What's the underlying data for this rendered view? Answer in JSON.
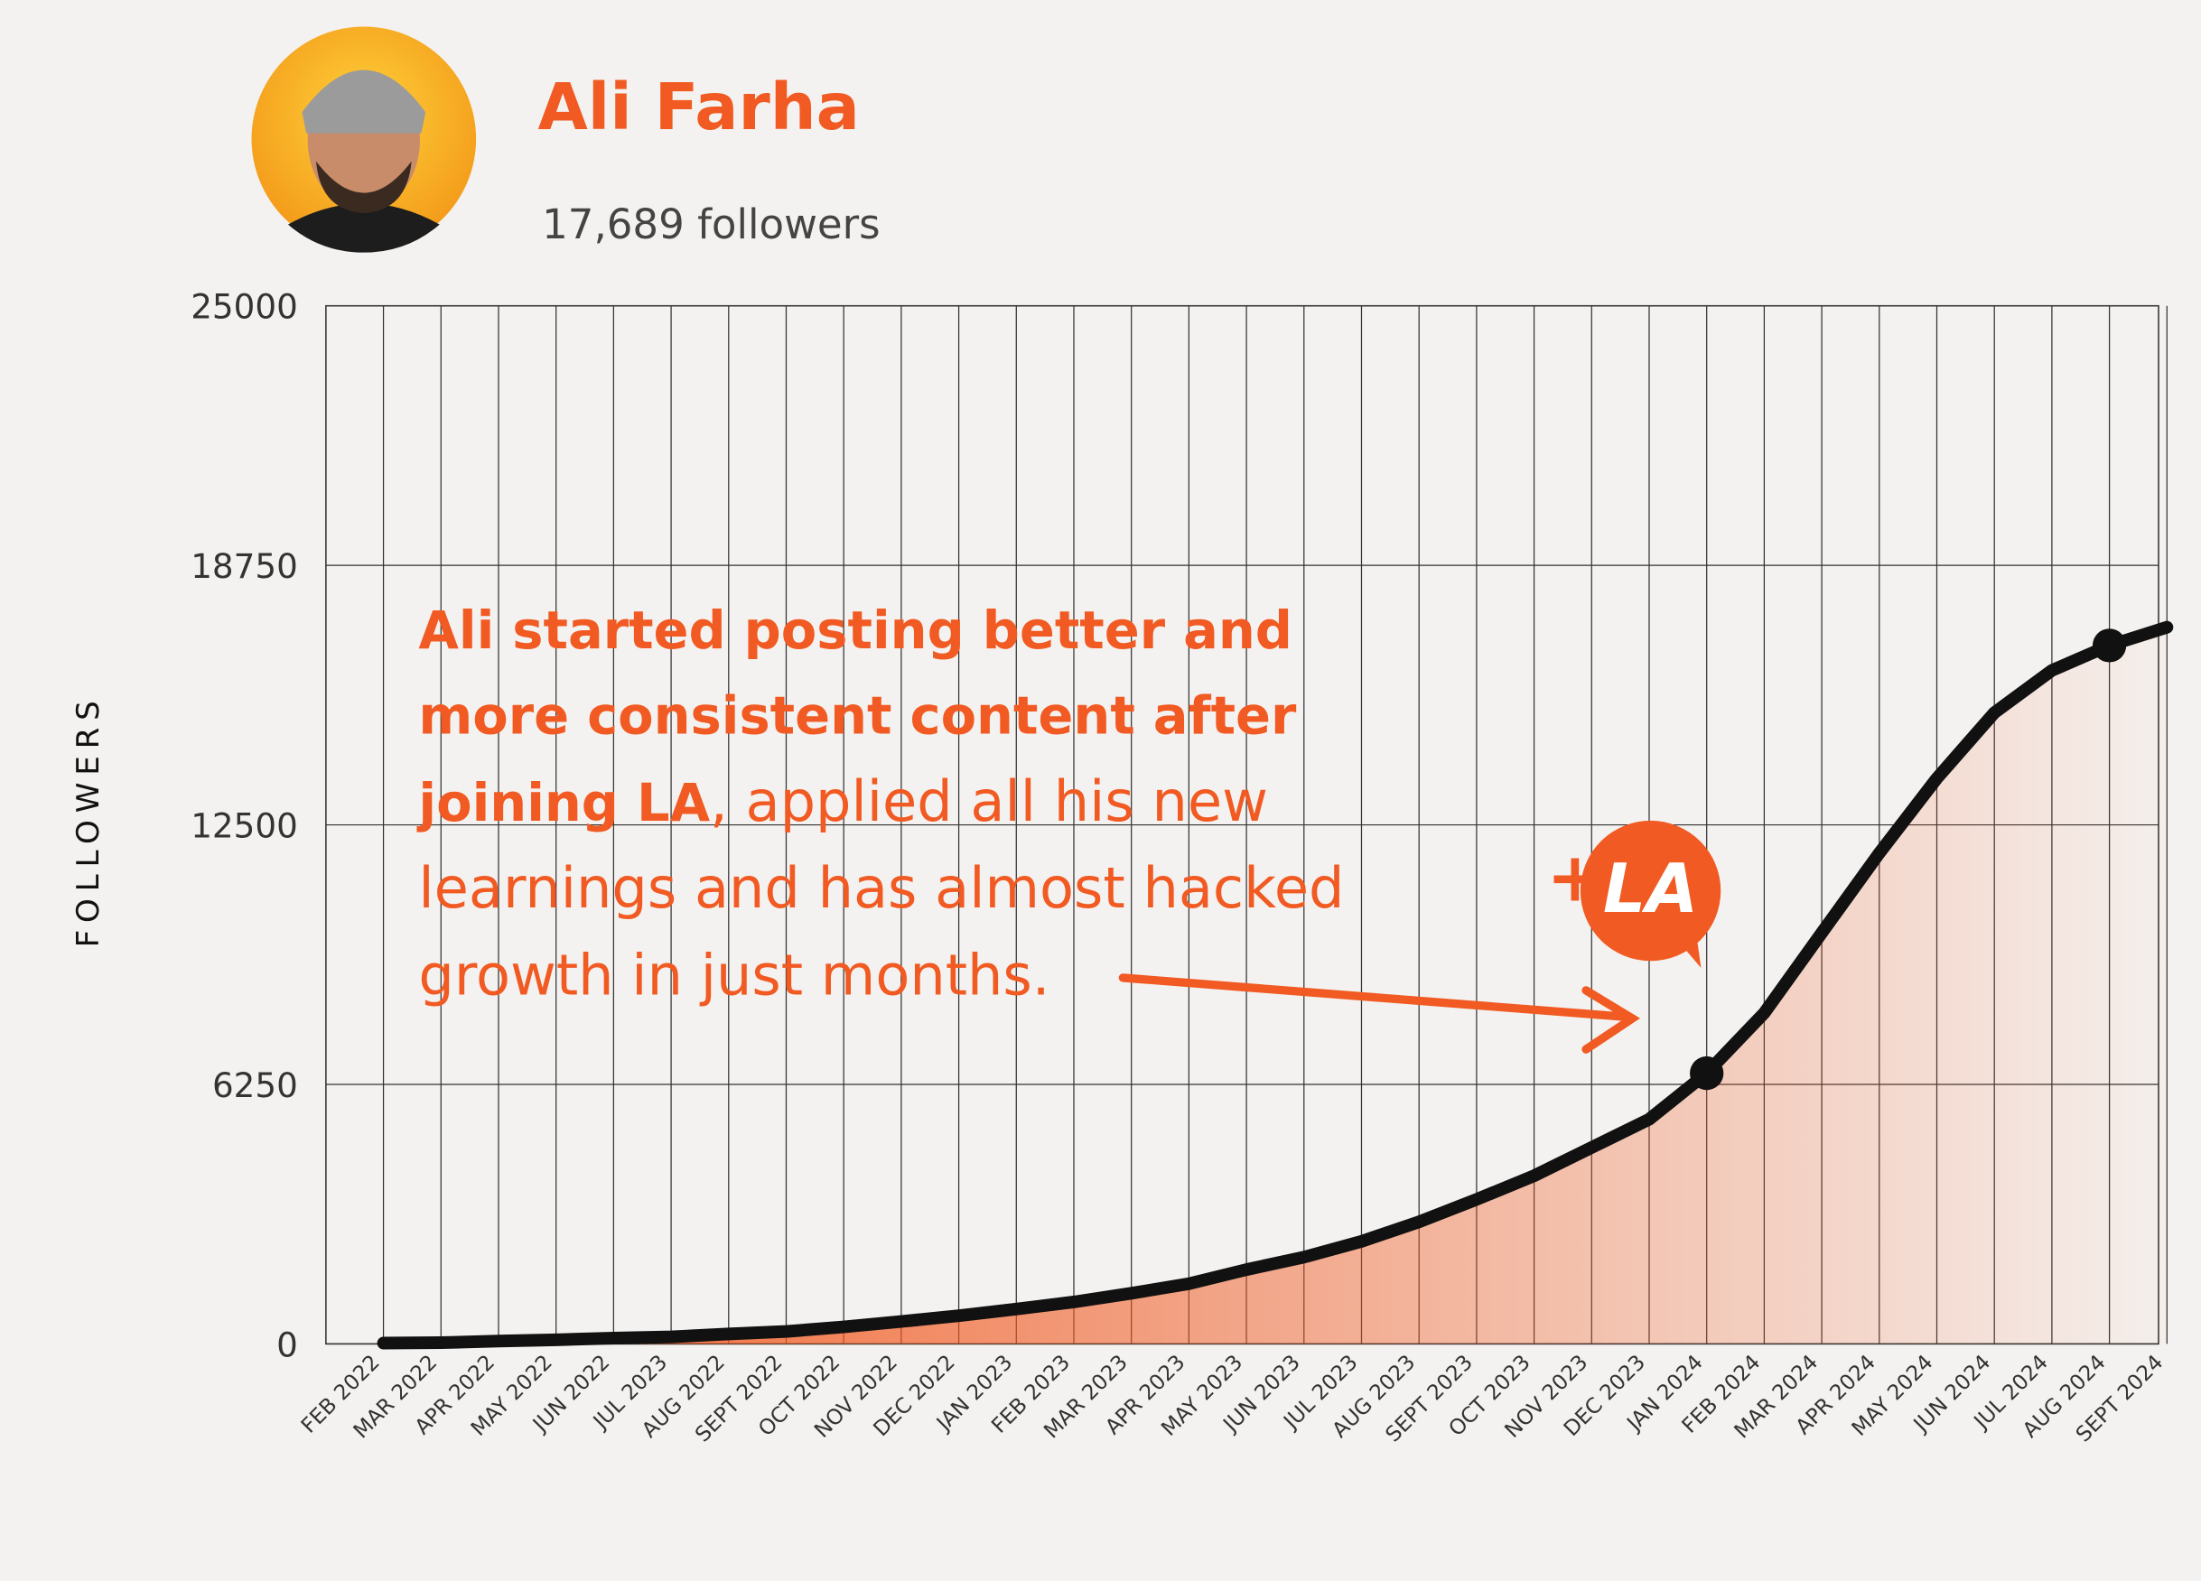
{
  "header": {
    "name": "Ali Farha",
    "followers": "17,689 followers"
  },
  "chart_data": {
    "type": "line",
    "ylabel": "FOLLOWERS",
    "categories": [
      "FEB 2022",
      "MAR 2022",
      "APR 2022",
      "MAY 2022",
      "JUN 2022",
      "JUL 2023",
      "AUG 2022",
      "SEPT 2022",
      "OCT 2022",
      "NOV 2022",
      "DEC 2022",
      "JAN 2023",
      "FEB 2023",
      "MAR 2023",
      "APR 2023",
      "MAY 2023",
      "JUN 2023",
      "JUL 2023",
      "AUG 2023",
      "SEPT 2023",
      "OCT 2023",
      "NOV 2023",
      "DEC 2023",
      "JAN 2024",
      "FEB 2024",
      "MAR 2024",
      "APR 2024",
      "MAY 2024",
      "JUN 2024",
      "JUL 2024",
      "AUG 2024",
      "SEPT 2024"
    ],
    "series": [
      {
        "name": "Followers",
        "color": "#111111",
        "values": [
          20,
          30,
          70,
          100,
          140,
          170,
          240,
          300,
          410,
          540,
          680,
          840,
          1010,
          1220,
          1450,
          1790,
          2090,
          2470,
          2940,
          3480,
          4050,
          4730,
          5410,
          6520,
          7970,
          9900,
          11820,
          13620,
          15200,
          16220,
          16820,
          17260
        ]
      }
    ],
    "fill_color": "#f15a22",
    "ylim": [
      0,
      25000
    ],
    "yticks": [
      0,
      6250,
      12500,
      18750,
      25000
    ],
    "grid": true,
    "highlight_points": [
      23,
      30
    ],
    "annotation_bold": [
      "Ali started posting better and",
      "more consistent content after",
      "joining LA"
    ],
    "annotation_regular": [
      ", applied all his new",
      "learnings and has almost hacked",
      "growth in just months."
    ],
    "badge": {
      "plus": "+",
      "text": "LA"
    }
  }
}
